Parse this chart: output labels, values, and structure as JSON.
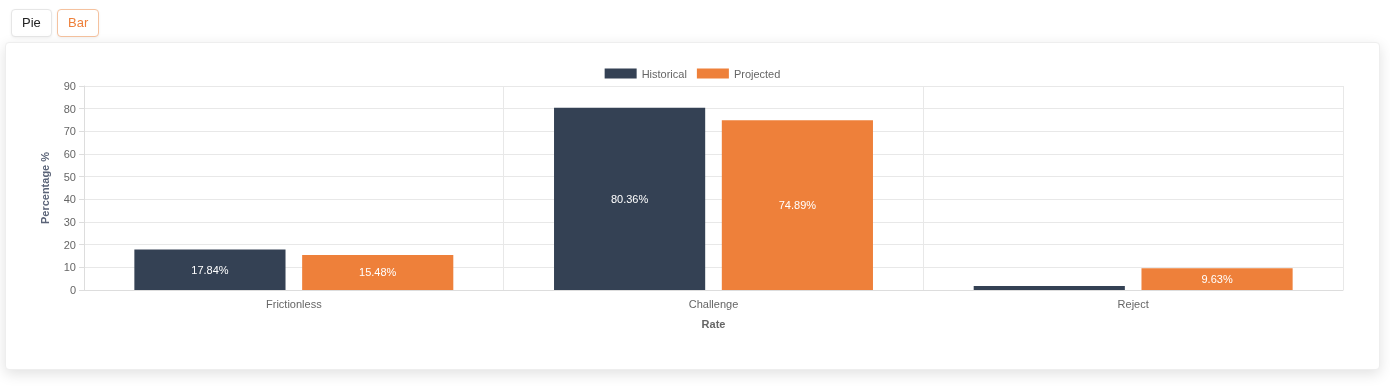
{
  "chart_data": {
    "type": "bar",
    "xlabel": "Rate",
    "ylabel": "Percentage %",
    "categories": [
      "Frictionless",
      "Challenge",
      "Reject"
    ],
    "series": [
      {
        "name": "Historical",
        "color": "#344154",
        "values": [
          17.84,
          80.36,
          1.8
        ],
        "value_labels": [
          "17.84%",
          "80.36%",
          null
        ]
      },
      {
        "name": "Projected",
        "color": "#ee803a",
        "values": [
          15.48,
          74.89,
          9.63
        ],
        "value_labels": [
          "15.48%",
          "74.89%",
          "9.63%"
        ]
      }
    ],
    "ylim": [
      0,
      90
    ],
    "yticks": [
      0,
      10,
      20,
      30,
      40,
      50,
      60,
      70,
      80,
      90
    ],
    "grid": true,
    "legend": "top",
    "annotations": [
      "Pie",
      "Bar"
    ]
  }
}
